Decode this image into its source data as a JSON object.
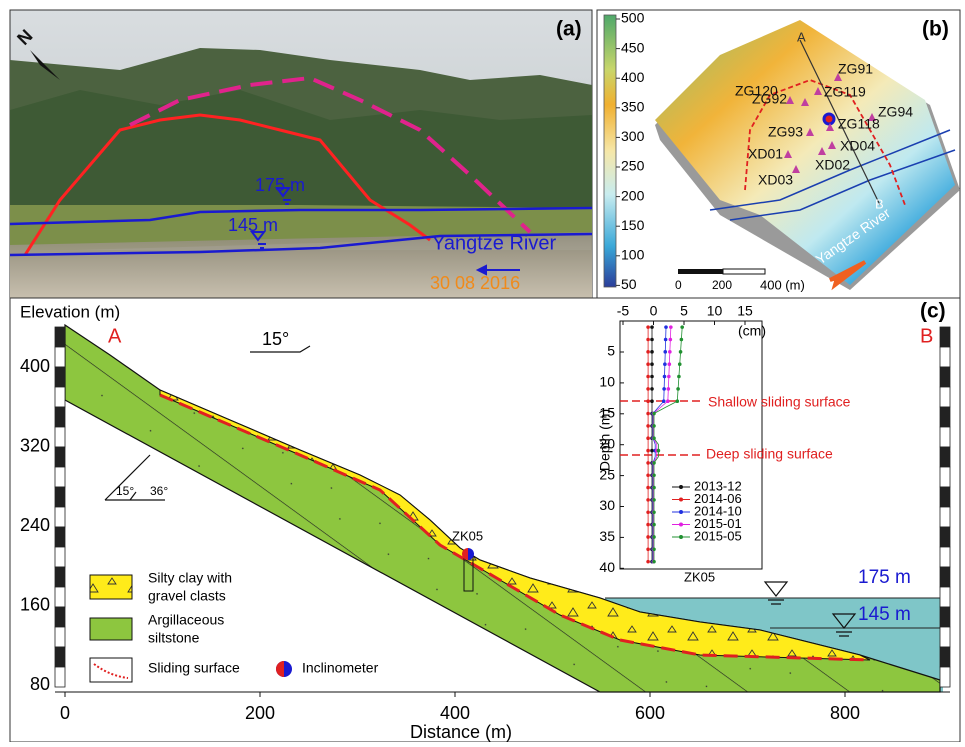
{
  "panel_a": {
    "label": "(a)",
    "north": "N",
    "levels": [
      "175 m",
      "145 m"
    ],
    "river": "Yangtze River",
    "date": "30 08 2016"
  },
  "panel_b": {
    "label": "(b)",
    "colorbar_ticks": [
      "500",
      "450",
      "400",
      "350",
      "300",
      "250",
      "200",
      "150",
      "100",
      "50"
    ],
    "section_points": [
      "A",
      "B"
    ],
    "monitors": [
      "ZG120",
      "ZG91",
      "ZG92",
      "ZG119",
      "ZG94",
      "ZG93",
      "ZG118",
      "XD01",
      "XD04",
      "XD02",
      "XD03"
    ],
    "scale_ticks": [
      "0",
      "200",
      "400 (m)"
    ],
    "river": "Yangtze River"
  },
  "panel_c": {
    "label": "(c)",
    "y_title": "Elevation (m)",
    "x_title": "Distance (m)",
    "section_ends": [
      "A",
      "B"
    ],
    "slope_angle": "15°",
    "dip": [
      "15°",
      "36°"
    ],
    "yticks": [
      "400",
      "320",
      "240",
      "160",
      "80"
    ],
    "xticks": [
      "0",
      "200",
      "400",
      "600",
      "800"
    ],
    "borehole": "ZK05",
    "levels": [
      "175 m",
      "145 m"
    ],
    "legend": [
      {
        "lines": [
          "Silty clay with",
          "gravel clasts"
        ]
      },
      {
        "lines": [
          "Argillaceous",
          "siltstone"
        ]
      },
      {
        "lines": [
          "Sliding surface"
        ]
      },
      {
        "lines": [
          "Inclinometer"
        ]
      }
    ],
    "inset": {
      "xticks": [
        "-5",
        "0",
        "5",
        "10",
        "15"
      ],
      "x_unit": "(cm)",
      "y_title": "Depth (m)",
      "yticks": [
        "5",
        "10",
        "15",
        "20",
        "25",
        "30",
        "35",
        "40"
      ],
      "surfaces": [
        "Shallow sliding surface",
        "Deep sliding surface"
      ],
      "series": [
        "2013-12",
        "2014-06",
        "2014-10",
        "2015-01",
        "2015-05"
      ],
      "title": "ZK05"
    }
  }
}
